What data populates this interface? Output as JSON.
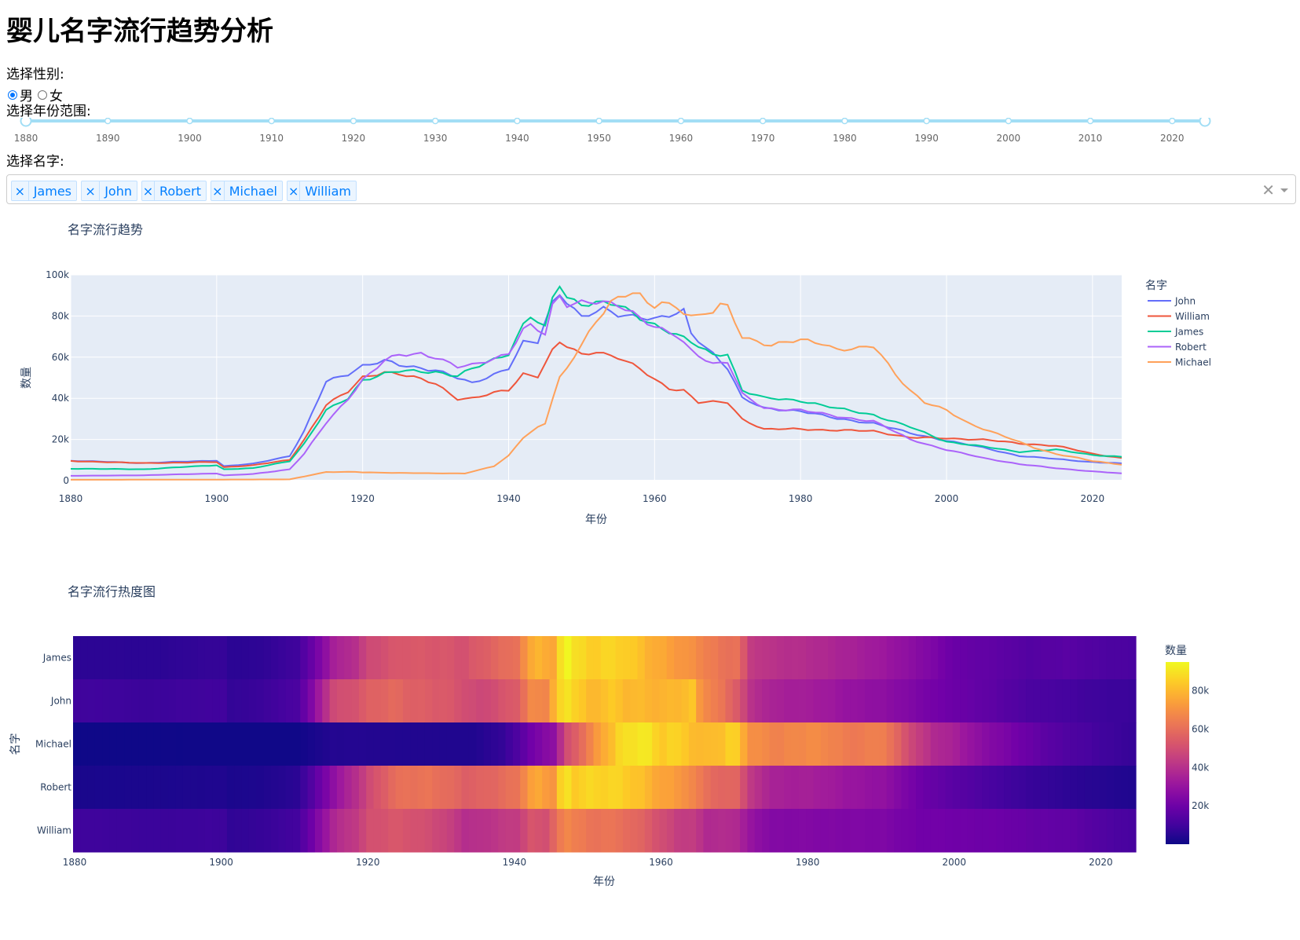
{
  "title": "婴儿名字流行趋势分析",
  "gender": {
    "label": "选择性别:",
    "options": [
      "男",
      "女"
    ],
    "selected": "男"
  },
  "year_range": {
    "label": "选择年份范围:",
    "min": 1880,
    "max": 2024,
    "value": [
      1880,
      2024
    ],
    "marks": [
      "1880",
      "1890",
      "1900",
      "1910",
      "1920",
      "1930",
      "1940",
      "1950",
      "1960",
      "1970",
      "1980",
      "1990",
      "2000",
      "2010",
      "2020"
    ]
  },
  "names_select": {
    "label": "选择名字:",
    "selected": [
      "James",
      "John",
      "Robert",
      "Michael",
      "William"
    ],
    "clear_icon": "close-icon"
  },
  "colors": {
    "John": "#636efa",
    "William": "#EF553B",
    "James": "#00cc96",
    "Robert": "#ab63fa",
    "Michael": "#FFA15A"
  },
  "chart_data": [
    {
      "type": "line",
      "title": "名字流行趋势",
      "xlabel": "年份",
      "ylabel": "数量",
      "xlim": [
        1880,
        2024
      ],
      "ylim": [
        0,
        100000
      ],
      "xticks": [
        "1880",
        "1900",
        "1920",
        "1940",
        "1960",
        "1980",
        "2000",
        "2020"
      ],
      "yticks": [
        "0",
        "20k",
        "40k",
        "60k",
        "80k",
        "100k"
      ],
      "legend_title": "名字",
      "legend_position": "right",
      "series": [
        {
          "name": "John",
          "points": [
            [
              1880,
              9700
            ],
            [
              1890,
              8500
            ],
            [
              1900,
              9800
            ],
            [
              1901,
              7000
            ],
            [
              1905,
              8200
            ],
            [
              1910,
              12000
            ],
            [
              1912,
              24000
            ],
            [
              1915,
              48000
            ],
            [
              1918,
              52000
            ],
            [
              1920,
              56000
            ],
            [
              1923,
              58000
            ],
            [
              1925,
              56000
            ],
            [
              1930,
              54000
            ],
            [
              1935,
              47000
            ],
            [
              1940,
              55000
            ],
            [
              1942,
              67000
            ],
            [
              1944,
              67000
            ],
            [
              1946,
              86000
            ],
            [
              1947,
              91000
            ],
            [
              1950,
              80000
            ],
            [
              1953,
              83000
            ],
            [
              1955,
              80000
            ],
            [
              1958,
              80000
            ],
            [
              1960,
              79000
            ],
            [
              1962,
              80000
            ],
            [
              1964,
              82000
            ],
            [
              1965,
              71000
            ],
            [
              1968,
              62000
            ],
            [
              1970,
              55000
            ],
            [
              1972,
              40000
            ],
            [
              1975,
              35000
            ],
            [
              1980,
              34000
            ],
            [
              1985,
              30000
            ],
            [
              1990,
              28000
            ],
            [
              1995,
              23000
            ],
            [
              2000,
              19500
            ],
            [
              2005,
              16000
            ],
            [
              2010,
              12000
            ],
            [
              2015,
              10500
            ],
            [
              2020,
              9000
            ],
            [
              2024,
              8300
            ]
          ]
        },
        {
          "name": "William",
          "points": [
            [
              1880,
              9500
            ],
            [
              1890,
              8500
            ],
            [
              1900,
              9000
            ],
            [
              1901,
              6500
            ],
            [
              1905,
              7500
            ],
            [
              1910,
              10000
            ],
            [
              1912,
              20000
            ],
            [
              1915,
              37000
            ],
            [
              1918,
              43000
            ],
            [
              1920,
              50000
            ],
            [
              1923,
              53000
            ],
            [
              1925,
              52000
            ],
            [
              1930,
              47000
            ],
            [
              1933,
              40000
            ],
            [
              1935,
              40000
            ],
            [
              1940,
              44000
            ],
            [
              1942,
              52000
            ],
            [
              1944,
              51000
            ],
            [
              1946,
              63000
            ],
            [
              1947,
              67000
            ],
            [
              1950,
              61000
            ],
            [
              1952,
              63000
            ],
            [
              1955,
              60000
            ],
            [
              1958,
              54000
            ],
            [
              1960,
              49000
            ],
            [
              1962,
              45000
            ],
            [
              1964,
              44000
            ],
            [
              1966,
              38000
            ],
            [
              1970,
              38000
            ],
            [
              1972,
              30000
            ],
            [
              1975,
              25000
            ],
            [
              1980,
              25000
            ],
            [
              1985,
              24500
            ],
            [
              1990,
              24000
            ],
            [
              1995,
              21000
            ],
            [
              2000,
              20500
            ],
            [
              2005,
              20000
            ],
            [
              2010,
              18000
            ],
            [
              2015,
              17000
            ],
            [
              2020,
              13000
            ],
            [
              2024,
              11000
            ]
          ]
        },
        {
          "name": "James",
          "points": [
            [
              1880,
              5800
            ],
            [
              1890,
              5500
            ],
            [
              1900,
              7500
            ],
            [
              1901,
              5500
            ],
            [
              1905,
              6000
            ],
            [
              1910,
              9500
            ],
            [
              1912,
              18000
            ],
            [
              1915,
              34000
            ],
            [
              1918,
              40000
            ],
            [
              1920,
              49000
            ],
            [
              1923,
              52000
            ],
            [
              1925,
              53000
            ],
            [
              1930,
              53000
            ],
            [
              1933,
              51000
            ],
            [
              1935,
              54000
            ],
            [
              1940,
              62000
            ],
            [
              1942,
              76000
            ],
            [
              1943,
              80000
            ],
            [
              1945,
              74000
            ],
            [
              1946,
              88000
            ],
            [
              1947,
              95000
            ],
            [
              1948,
              89000
            ],
            [
              1950,
              86000
            ],
            [
              1952,
              87000
            ],
            [
              1955,
              85000
            ],
            [
              1958,
              79000
            ],
            [
              1960,
              76000
            ],
            [
              1963,
              71000
            ],
            [
              1965,
              67000
            ],
            [
              1968,
              61000
            ],
            [
              1970,
              62000
            ],
            [
              1972,
              44000
            ],
            [
              1975,
              40000
            ],
            [
              1980,
              39000
            ],
            [
              1985,
              35000
            ],
            [
              1990,
              32000
            ],
            [
              1995,
              26000
            ],
            [
              2000,
              19000
            ],
            [
              2005,
              16500
            ],
            [
              2010,
              14000
            ],
            [
              2015,
              15000
            ],
            [
              2020,
              12500
            ],
            [
              2024,
              11500
            ]
          ]
        },
        {
          "name": "Robert",
          "points": [
            [
              1880,
              2300
            ],
            [
              1890,
              2600
            ],
            [
              1900,
              3500
            ],
            [
              1901,
              2500
            ],
            [
              1905,
              3200
            ],
            [
              1910,
              5500
            ],
            [
              1912,
              13000
            ],
            [
              1915,
              28000
            ],
            [
              1918,
              40000
            ],
            [
              1920,
              49000
            ],
            [
              1923,
              58000
            ],
            [
              1925,
              61000
            ],
            [
              1928,
              62000
            ],
            [
              1930,
              60000
            ],
            [
              1933,
              55000
            ],
            [
              1935,
              56000
            ],
            [
              1940,
              62000
            ],
            [
              1942,
              73000
            ],
            [
              1943,
              75000
            ],
            [
              1945,
              71000
            ],
            [
              1946,
              85000
            ],
            [
              1947,
              90000
            ],
            [
              1948,
              86000
            ],
            [
              1950,
              87000
            ],
            [
              1953,
              86000
            ],
            [
              1955,
              85000
            ],
            [
              1957,
              82000
            ],
            [
              1960,
              75000
            ],
            [
              1963,
              70000
            ],
            [
              1965,
              63000
            ],
            [
              1968,
              57000
            ],
            [
              1970,
              58000
            ],
            [
              1972,
              42000
            ],
            [
              1975,
              35000
            ],
            [
              1980,
              34500
            ],
            [
              1985,
              31000
            ],
            [
              1990,
              29000
            ],
            [
              1995,
              20000
            ],
            [
              2000,
              15000
            ],
            [
              2005,
              11000
            ],
            [
              2010,
              8000
            ],
            [
              2015,
              6000
            ],
            [
              2020,
              4500
            ],
            [
              2024,
              3500
            ]
          ]
        },
        {
          "name": "Michael",
          "points": [
            [
              1880,
              400
            ],
            [
              1900,
              500
            ],
            [
              1910,
              600
            ],
            [
              1912,
              2000
            ],
            [
              1915,
              4200
            ],
            [
              1919,
              4200
            ],
            [
              1920,
              4000
            ],
            [
              1930,
              3500
            ],
            [
              1934,
              3500
            ],
            [
              1938,
              7000
            ],
            [
              1940,
              12000
            ],
            [
              1942,
              21000
            ],
            [
              1944,
              26000
            ],
            [
              1945,
              28000
            ],
            [
              1946,
              40000
            ],
            [
              1947,
              50000
            ],
            [
              1948,
              54000
            ],
            [
              1950,
              66000
            ],
            [
              1952,
              77000
            ],
            [
              1954,
              88000
            ],
            [
              1956,
              90000
            ],
            [
              1957,
              92000
            ],
            [
              1958,
              90000
            ],
            [
              1959,
              85000
            ],
            [
              1960,
              84000
            ],
            [
              1961,
              87000
            ],
            [
              1963,
              84000
            ],
            [
              1965,
              81000
            ],
            [
              1966,
              80000
            ],
            [
              1968,
              82000
            ],
            [
              1969,
              85000
            ],
            [
              1970,
              84000
            ],
            [
              1972,
              70000
            ],
            [
              1974,
              68000
            ],
            [
              1976,
              66000
            ],
            [
              1980,
              68000
            ],
            [
              1983,
              67000
            ],
            [
              1985,
              64000
            ],
            [
              1988,
              64000
            ],
            [
              1990,
              65000
            ],
            [
              1991,
              61000
            ],
            [
              1993,
              52000
            ],
            [
              1995,
              44000
            ],
            [
              1997,
              38000
            ],
            [
              2000,
              34000
            ],
            [
              2003,
              28000
            ],
            [
              2006,
              24000
            ],
            [
              2009,
              20000
            ],
            [
              2012,
              16000
            ],
            [
              2015,
              13000
            ],
            [
              2018,
              11000
            ],
            [
              2020,
              9500
            ],
            [
              2024,
              7800
            ]
          ]
        }
      ]
    },
    {
      "type": "heatmap",
      "title": "名字流行热度图",
      "xlabel": "年份",
      "ylabel": "名字",
      "xlim": [
        1880,
        2024
      ],
      "xticks": [
        "1880",
        "1900",
        "1920",
        "1940",
        "1960",
        "1980",
        "2000",
        "2020"
      ],
      "y": [
        "James",
        "John",
        "Michael",
        "Robert",
        "William"
      ],
      "colorbar_title": "数量",
      "colorbar_ticks": [
        "20k",
        "40k",
        "60k",
        "80k"
      ],
      "zlim": [
        0,
        95000
      ],
      "colorscale": "Plasma",
      "note_values_source": "same series as line chart"
    }
  ]
}
